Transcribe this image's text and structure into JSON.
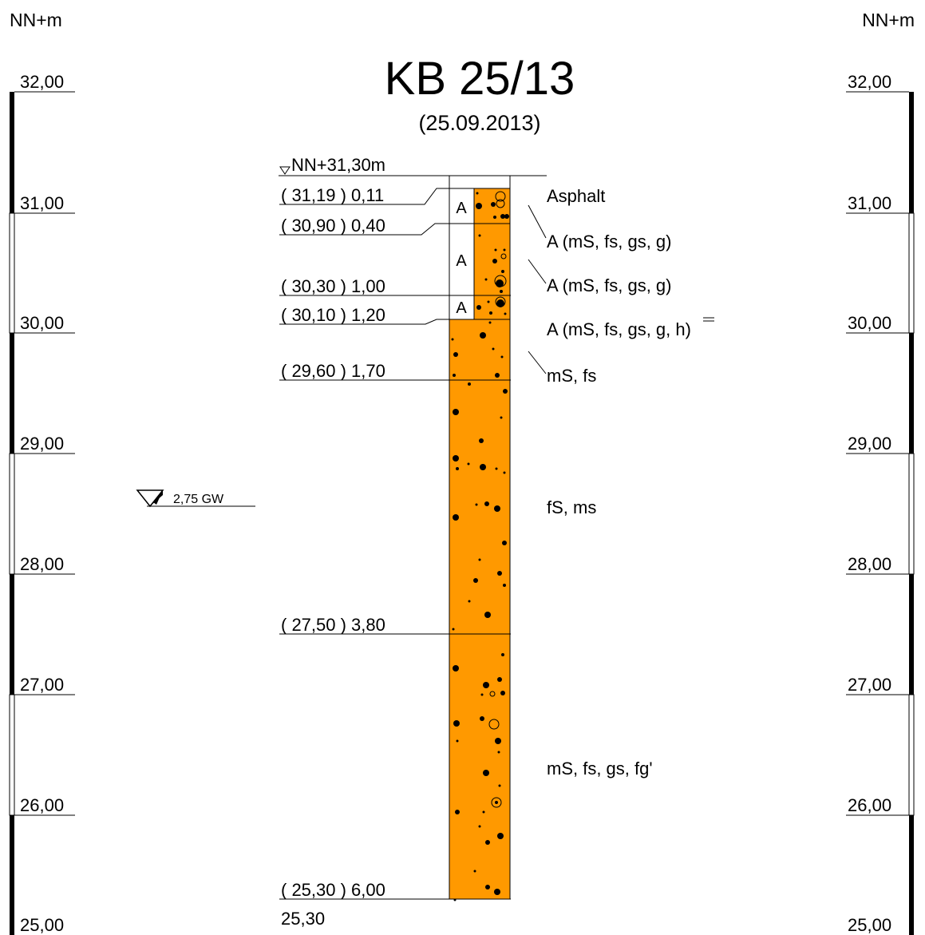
{
  "header": {
    "unit_left": "NN+m",
    "unit_right": "NN+m",
    "title": "KB 25/13",
    "date": "(25.09.2013)"
  },
  "elevation_scale": {
    "labels": [
      "32,00",
      "31,00",
      "30,00",
      "29,00",
      "28,00",
      "27,00",
      "26,00",
      "25,00"
    ]
  },
  "borehole": {
    "top_label": "NN+31,30m",
    "bottom_label": "25,30",
    "groundwater_label": "2,75 GW",
    "colors": {
      "soil": "#ff9900",
      "fill": "#ffffff",
      "line": "#000000"
    },
    "layer_boundaries": [
      {
        "label": "( 31,19 ) 0,11"
      },
      {
        "label": "( 30,90 ) 0,40"
      },
      {
        "label": "( 30,30 ) 1,00"
      },
      {
        "label": "( 30,10 ) 1,20"
      },
      {
        "label": "( 29,60 ) 1,70"
      },
      {
        "label": "( 27,50 ) 3,80"
      },
      {
        "label": "( 25,30 ) 6,00"
      }
    ],
    "layer_codes": [
      "A",
      "A",
      "A"
    ],
    "descriptions": [
      "Asphalt",
      "A (mS, fs, gs, g)",
      "A (mS, fs, gs, g)",
      "A (mS, fs, gs, g, h)",
      "mS, fs",
      "fS, ms",
      "mS, fs, gs, fg'"
    ]
  }
}
